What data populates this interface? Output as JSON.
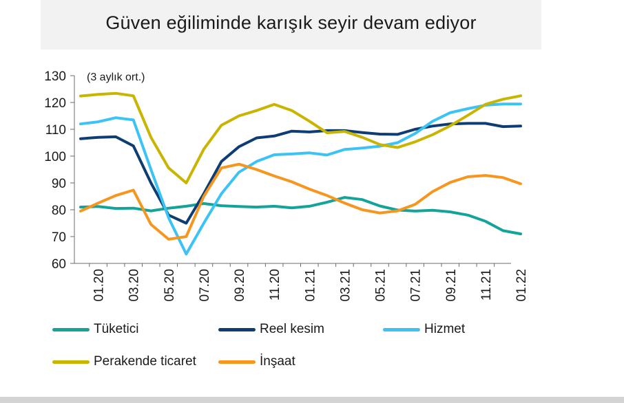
{
  "chart_data": {
    "type": "line",
    "title": "Güven eğiliminde karışık seyir devam ediyor",
    "annotation": "(3 aylık ort.)",
    "ylim": [
      60,
      130
    ],
    "yticks": [
      60,
      70,
      80,
      90,
      100,
      110,
      120,
      130
    ],
    "x": [
      "12.19",
      "01.20",
      "02.20",
      "03.20",
      "04.20",
      "05.20",
      "06.20",
      "07.20",
      "08.20",
      "09.20",
      "10.20",
      "11.20",
      "12.20",
      "01.21",
      "02.21",
      "03.21",
      "04.21",
      "05.21",
      "06.21",
      "07.21",
      "08.21",
      "09.21",
      "10.21",
      "11.21",
      "12.21",
      "01.22"
    ],
    "xtick_labels": [
      "01.20",
      "03.20",
      "05.20",
      "07.20",
      "09.20",
      "11.20",
      "01.21",
      "03.21",
      "05.21",
      "07.21",
      "09.21",
      "11.21",
      "01.22"
    ],
    "grid": false,
    "legend_position": "bottom",
    "series": [
      {
        "name": "Tüketici",
        "color": "#14a39a",
        "values": [
          81,
          81.2,
          80.5,
          80.6,
          79.6,
          80.6,
          81.3,
          82.3,
          81.5,
          81.2,
          81,
          81.3,
          80.7,
          81.3,
          82.8,
          84.6,
          83.8,
          81.4,
          79.9,
          79.5,
          79.8,
          79.2,
          78,
          75.7,
          72.2,
          71
        ]
      },
      {
        "name": "Reel kesim",
        "color": "#0d3d73",
        "values": [
          106.5,
          107,
          107.2,
          103.8,
          90,
          78,
          75,
          86,
          98,
          103.5,
          106.8,
          107.5,
          109.3,
          109,
          109.5,
          109.5,
          108.8,
          108.2,
          108.1,
          110,
          111.2,
          112,
          112.2,
          112.2,
          111,
          111.2
        ]
      },
      {
        "name": "Hizmet",
        "color": "#3cc3f5",
        "values": [
          112,
          112.8,
          114.3,
          113.5,
          95,
          77,
          63.5,
          75,
          86,
          94,
          98,
          100.5,
          100.8,
          101.2,
          100.4,
          102.5,
          103,
          103.7,
          105,
          108.4,
          113,
          116.2,
          117.7,
          119,
          119.4,
          119.4
        ]
      },
      {
        "name": "Perakende ticaret",
        "color": "#c9b400",
        "values": [
          122.4,
          123,
          123.4,
          122.5,
          107,
          95.6,
          90,
          102.6,
          111.5,
          115,
          117,
          119.3,
          117,
          113,
          108.7,
          109.2,
          107,
          104.3,
          103.2,
          105.3,
          108,
          111.3,
          115.2,
          119.3,
          121.2,
          122.5
        ]
      },
      {
        "name": "İnşaat",
        "color": "#f7961e",
        "values": [
          79.5,
          82.5,
          85.3,
          87.3,
          74.5,
          69,
          70,
          85,
          95.6,
          97,
          95,
          92.6,
          90.4,
          87.7,
          85.3,
          82.5,
          80,
          78.8,
          79.6,
          82,
          86.8,
          90.2,
          92.3,
          92.8,
          92,
          89.7
        ]
      }
    ]
  }
}
